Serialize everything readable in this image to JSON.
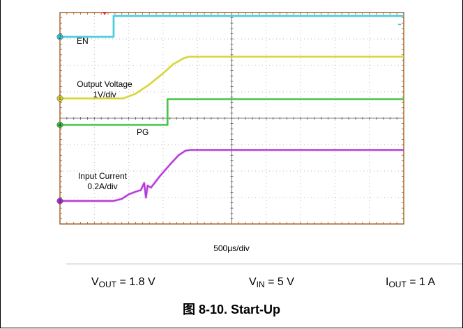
{
  "chart_data": {
    "type": "line",
    "title": "",
    "xlabel": "500µs/div",
    "ylabel": "",
    "x_unit": "div",
    "y_unit": "div",
    "xlim": [
      0,
      10
    ],
    "ylim": [
      0,
      8
    ],
    "grid": true,
    "series": [
      {
        "name": "EN",
        "label_lines": [
          "EN"
        ],
        "color": "#38c8dc",
        "x": [
          0,
          1.56,
          1.56,
          10
        ],
        "y": [
          7.08,
          7.08,
          7.87,
          7.87
        ]
      },
      {
        "name": "Output Voltage",
        "label_lines": [
          "Output Voltage",
          "1V/div"
        ],
        "color": "#d6d22c",
        "x": [
          0,
          1.84,
          2.2,
          2.6,
          3.0,
          3.3,
          3.6,
          3.75,
          10
        ],
        "y": [
          4.75,
          4.75,
          4.93,
          5.28,
          5.7,
          6.05,
          6.27,
          6.33,
          6.33
        ]
      },
      {
        "name": "PG",
        "label_lines": [
          "PG"
        ],
        "color": "#3cc03c",
        "x": [
          0,
          3.13,
          3.13,
          10
        ],
        "y": [
          3.75,
          3.75,
          4.72,
          4.72
        ]
      },
      {
        "name": "Input Current",
        "label_lines": [
          "Input Current",
          "0.2A/div"
        ],
        "color": "#b02ed8",
        "x": [
          0,
          1.56,
          1.8,
          2.0,
          2.2,
          2.35,
          2.45,
          2.5,
          2.55,
          2.65,
          2.9,
          3.2,
          3.45,
          3.65,
          3.8,
          10
        ],
        "y": [
          0.87,
          0.87,
          0.95,
          1.12,
          1.22,
          1.28,
          1.55,
          1.0,
          1.45,
          1.38,
          1.8,
          2.25,
          2.6,
          2.77,
          2.8,
          2.8
        ]
      }
    ],
    "annotations": [
      "EN",
      "Output Voltage",
      "1V/div",
      "PG",
      "Input Current",
      "0.2A/div"
    ]
  },
  "conditions": [
    {
      "symbol": "V",
      "subscript": "OUT",
      "rest": " = 1.8 V"
    },
    {
      "symbol": "V",
      "subscript": "IN",
      "rest": " = 5 V"
    },
    {
      "symbol": "I",
      "subscript": "OUT",
      "rest": " = 1 A"
    }
  ],
  "caption": "图 8-10. Start-Up",
  "channel_markers": [
    "1",
    "2",
    "3",
    "4"
  ],
  "colors": {
    "grid_border": "#a05a1e",
    "gridline": "#888888",
    "marker_red": "#e0303a"
  }
}
